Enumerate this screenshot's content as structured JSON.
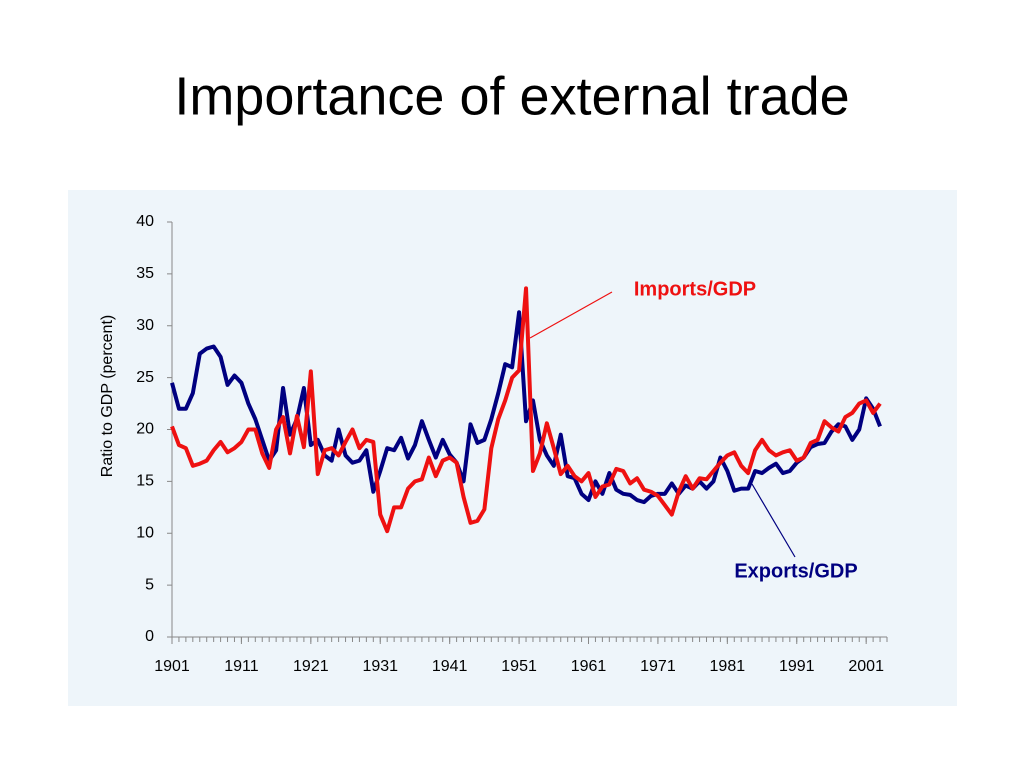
{
  "chart_data": {
    "type": "line",
    "title": "Importance of external trade",
    "y_label": "Ratio to GDP (percent)",
    "x": [
      1901,
      1902,
      1903,
      1904,
      1905,
      1906,
      1907,
      1908,
      1909,
      1910,
      1911,
      1912,
      1913,
      1914,
      1915,
      1916,
      1917,
      1918,
      1919,
      1920,
      1921,
      1922,
      1923,
      1924,
      1925,
      1926,
      1927,
      1928,
      1929,
      1930,
      1931,
      1932,
      1933,
      1934,
      1935,
      1936,
      1937,
      1938,
      1939,
      1940,
      1941,
      1942,
      1943,
      1944,
      1945,
      1946,
      1947,
      1948,
      1949,
      1950,
      1951,
      1952,
      1953,
      1954,
      1955,
      1956,
      1957,
      1958,
      1959,
      1960,
      1961,
      1962,
      1963,
      1964,
      1965,
      1966,
      1967,
      1968,
      1969,
      1970,
      1971,
      1972,
      1973,
      1974,
      1975,
      1976,
      1977,
      1978,
      1979,
      1980,
      1981,
      1982,
      1983,
      1984,
      1985,
      1986,
      1987,
      1988,
      1989,
      1990,
      1991,
      1992,
      1993,
      1994,
      1995,
      1996,
      1997,
      1998,
      1999,
      2000,
      2001,
      2002,
      2003
    ],
    "series": [
      {
        "name": "Exports/GDP",
        "color": "#000080",
        "values": [
          24.5,
          22,
          22,
          23.5,
          27.3,
          27.8,
          28,
          27,
          24.3,
          25.2,
          24.5,
          22.5,
          21,
          19,
          17,
          18,
          24,
          19.5,
          21,
          24,
          18.5,
          19,
          17.5,
          17,
          20,
          17.5,
          16.8,
          17,
          18,
          14,
          16,
          18.2,
          18,
          19.2,
          17.2,
          18.5,
          20.8,
          19,
          17.3,
          19,
          17.6,
          16.8,
          15,
          20.5,
          18.7,
          19,
          21,
          23.5,
          26.3,
          26,
          31.3,
          20.8,
          22.8,
          19,
          17.5,
          16.5,
          19.5,
          15.5,
          15.3,
          13.8,
          13.2,
          15,
          13.8,
          15.8,
          14.2,
          13.8,
          13.7,
          13.2,
          13,
          13.6,
          13.8,
          13.8,
          14.8,
          13.8,
          14.6,
          14.3,
          15,
          14.3,
          15,
          17.3,
          16,
          14.1,
          14.3,
          14.3,
          16,
          15.8,
          16.3,
          16.7,
          15.8,
          16,
          16.8,
          17.3,
          18.3,
          18.6,
          18.7,
          19.8,
          20.5,
          20.3,
          19,
          20,
          23,
          22,
          20.3
        ]
      },
      {
        "name": "Imports/GDP",
        "color": "#ee1111",
        "values": [
          20.3,
          18.5,
          18.2,
          16.5,
          16.7,
          17,
          18,
          18.8,
          17.8,
          18.2,
          18.8,
          20,
          20,
          17.7,
          16.3,
          20,
          21.2,
          17.7,
          21.3,
          18.3,
          25.6,
          15.7,
          18,
          18.2,
          17.5,
          18.8,
          20,
          18.2,
          19,
          18.8,
          11.8,
          10.2,
          12.5,
          12.5,
          14.3,
          15,
          15.2,
          17.3,
          15.5,
          17,
          17.3,
          16.8,
          13.5,
          11,
          11.2,
          12.3,
          18.2,
          21,
          22.8,
          25,
          25.7,
          33.6,
          16,
          17.7,
          20.6,
          18.2,
          15.7,
          16.5,
          15.5,
          15,
          15.8,
          13.5,
          14.5,
          14.7,
          16.2,
          16,
          14.8,
          15.3,
          14.2,
          14,
          13.6,
          12.7,
          11.8,
          14,
          15.5,
          14.3,
          15.3,
          15.2,
          16,
          16.8,
          17.5,
          17.8,
          16.5,
          15.8,
          18,
          19,
          18,
          17.5,
          17.8,
          18,
          17,
          17.3,
          18.7,
          19,
          20.8,
          20.2,
          19.8,
          21.2,
          21.6,
          22.5,
          22.8,
          21.6,
          22.5
        ]
      }
    ],
    "xlim": [
      1901,
      2004
    ],
    "xticks": [
      1901,
      1911,
      1921,
      1931,
      1941,
      1951,
      1961,
      1971,
      1981,
      1991,
      2001
    ],
    "ylim": [
      0,
      40
    ],
    "yticks": [
      0,
      5,
      10,
      15,
      20,
      25,
      30,
      35,
      40
    ],
    "annotations": [
      "Imports/GDP",
      "Exports/GDP"
    ]
  }
}
